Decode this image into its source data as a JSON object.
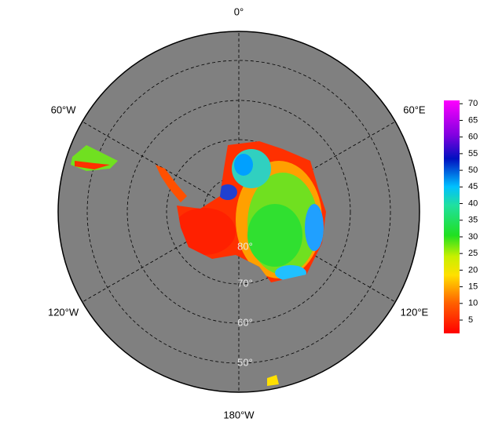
{
  "map": {
    "longitude_labels": [
      "0°",
      "60°E",
      "120°E",
      "180°W",
      "120°W",
      "60°W"
    ],
    "latitude_labels": [
      "80°",
      "70°",
      "60°",
      "50°"
    ],
    "colorbar": {
      "lim": [
        1,
        71
      ],
      "ticks": [
        5,
        10,
        15,
        20,
        25,
        30,
        35,
        40,
        45,
        50,
        55,
        60,
        65,
        70
      ]
    }
  }
}
